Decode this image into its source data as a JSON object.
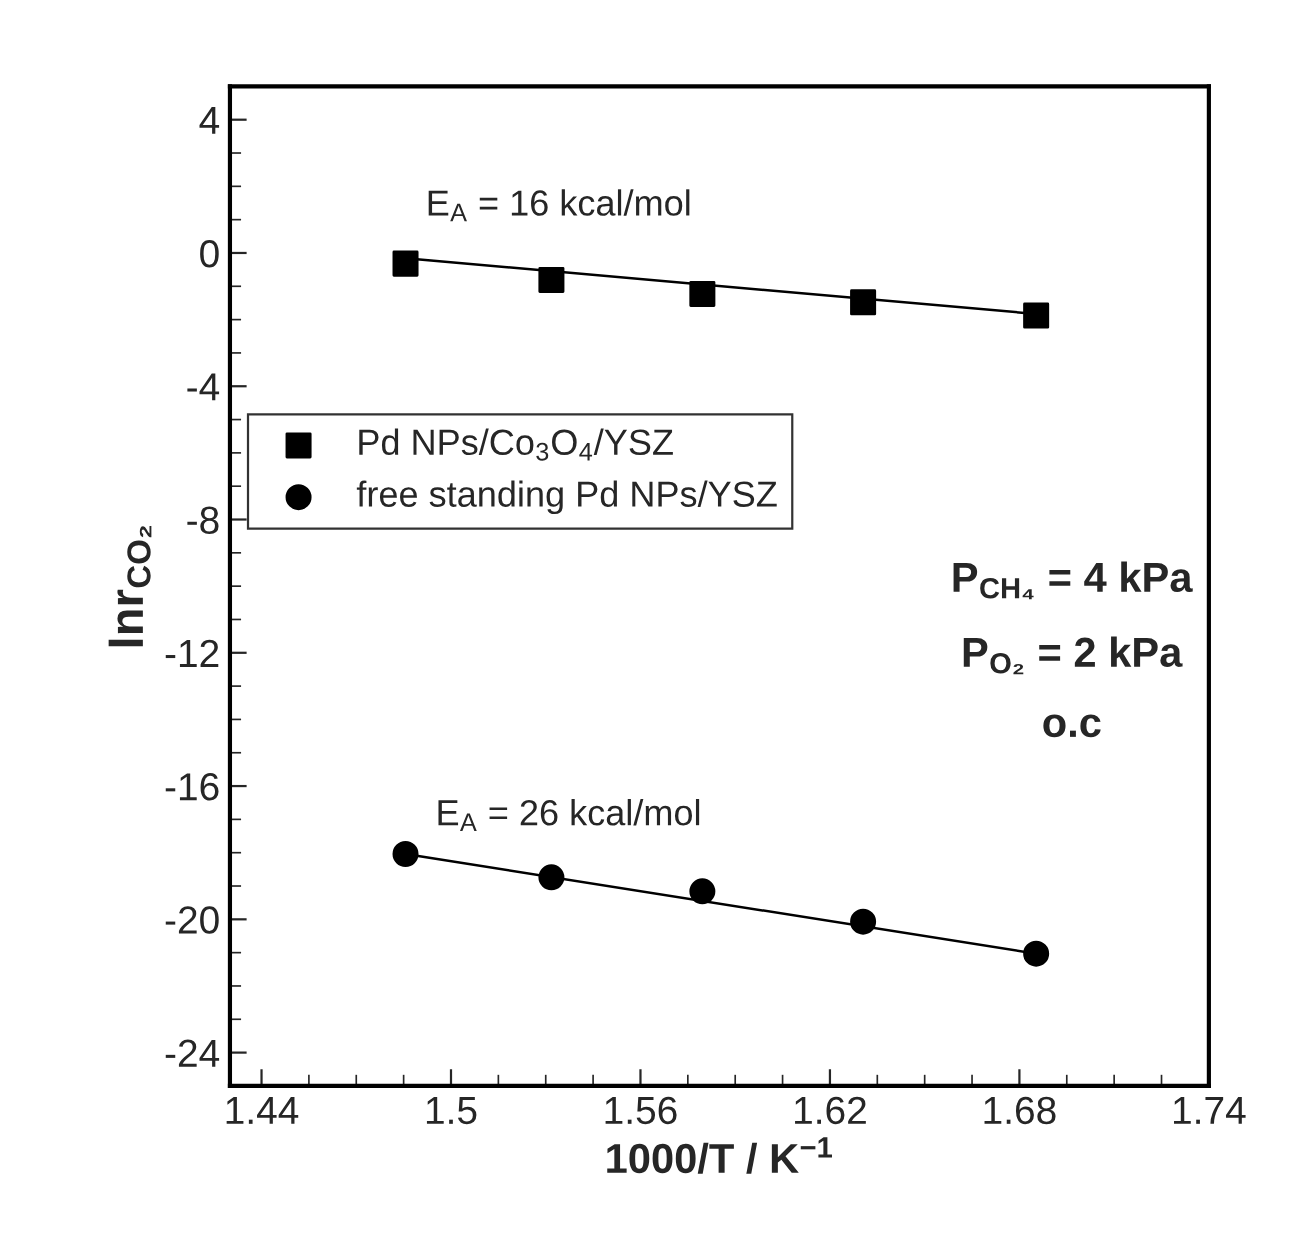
{
  "chart_data": {
    "type": "scatter",
    "xlabel": "1000/T / K$^{−1}$",
    "ylabel": "lnr$_{CO₂}$",
    "xlim": [
      1.43,
      1.74
    ],
    "xticks": [
      1.44,
      1.5,
      1.56,
      1.62,
      1.68,
      1.74
    ],
    "ylim": [
      -25,
      5
    ],
    "yticks": [
      4,
      0,
      -4,
      -8,
      -12,
      -16,
      -20,
      -24
    ],
    "grid": false,
    "legend": "upper left",
    "series": [
      {
        "name": "Pd NPs/Co$_{3}$O$_{4}$/YSZ",
        "color": "#000000",
        "marker": "square",
        "x": [
          1.4856,
          1.5318,
          1.5796,
          1.6305,
          1.6853
        ],
        "values": [
          -0.32,
          -0.81,
          -1.23,
          -1.48,
          -1.88
        ]
      },
      {
        "name": "free standing Pd NPs/YSZ",
        "color": "#000000",
        "marker": "circle",
        "x": [
          1.4856,
          1.5318,
          1.5796,
          1.6305,
          1.6853
        ],
        "values": [
          -18.04,
          -18.74,
          -19.16,
          -20.07,
          -21.03
        ]
      },
      {
        "type": "line",
        "color": "#000000",
        "marker": "none",
        "x": [
          1.4856,
          1.6853
        ],
        "values": [
          -0.16,
          -1.83
        ]
      },
      {
        "type": "line",
        "color": "#000000",
        "marker": "none",
        "x": [
          1.4856,
          1.6853
        ],
        "values": [
          -18.04,
          -21.03
        ]
      }
    ],
    "annotations": [
      "E$_{A}$ = 16 kcal/mol",
      "E$_{A}$ = 26 kcal/mol",
      "P$_{CH₄}$ = 4 kPa",
      "P$_{O₂}$ = 2 kPa",
      "o.c"
    ]
  }
}
